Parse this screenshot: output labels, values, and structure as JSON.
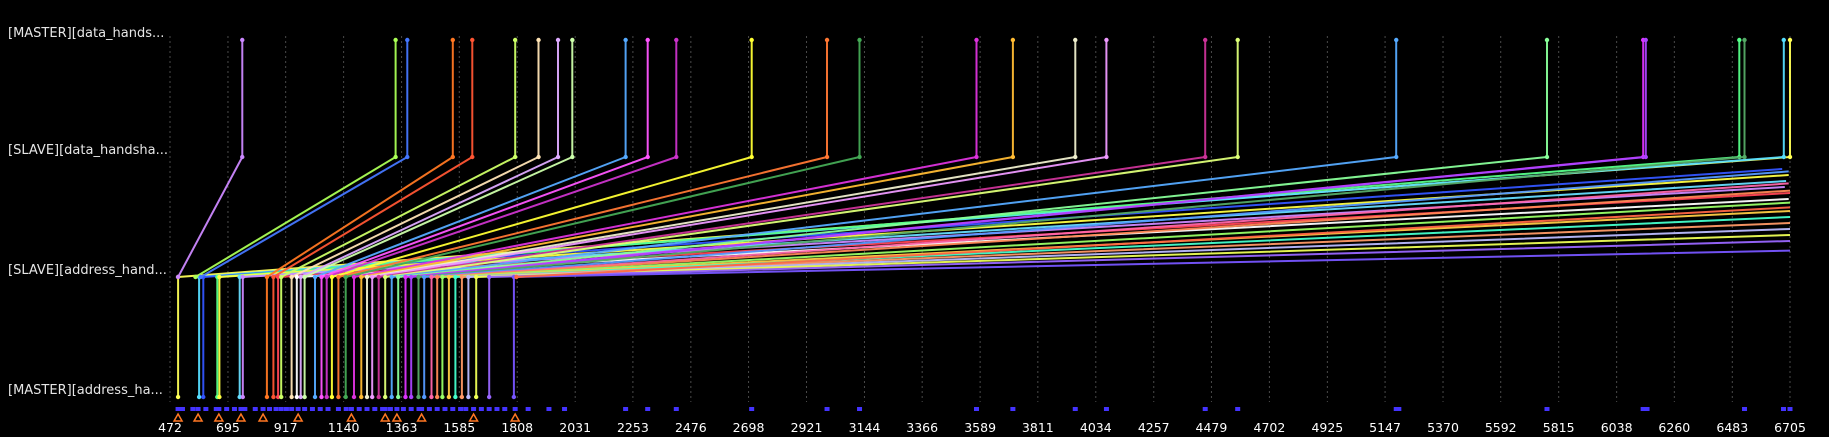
{
  "chart_data": {
    "type": "line",
    "title": "",
    "xlabel": "",
    "ylabel": "",
    "grid": true,
    "xlim": [
      472,
      6705
    ],
    "x_ticks": [
      472,
      695,
      917,
      1140,
      1363,
      1585,
      1808,
      2031,
      2253,
      2476,
      2698,
      2921,
      3144,
      3366,
      3589,
      3811,
      4034,
      4257,
      4479,
      4702,
      4925,
      5147,
      5370,
      5592,
      5815,
      6038,
      6260,
      6483,
      6705
    ],
    "lanes": [
      "[MASTER][data_hands...",
      "[SLAVE][data_handsha...",
      "[SLAVE][address_hand...",
      "[MASTER][address_ha..."
    ],
    "series": [
      {
        "color": "#ffff55",
        "path": [
          [
            503,
            3
          ],
          [
            503,
            2
          ],
          [
            6705,
            1
          ],
          [
            6705,
            0
          ]
        ]
      },
      {
        "color": "#55ddff",
        "path": [
          [
            584,
            3
          ],
          [
            584,
            2
          ],
          [
            6681,
            1
          ],
          [
            6681,
            0
          ]
        ]
      },
      {
        "color": "#3355ff",
        "path": [
          [
            600,
            3
          ],
          [
            600,
            2
          ],
          [
            6675,
            1.1
          ]
        ]
      },
      {
        "color": "#cc88ff",
        "path": [
          [
            503,
            2
          ],
          [
            750,
            1
          ],
          [
            750,
            0
          ]
        ]
      },
      {
        "color": "#55ff88",
        "path": [
          [
            654,
            3
          ],
          [
            654,
            2
          ],
          [
            6510,
            1
          ],
          [
            6510,
            0
          ]
        ]
      },
      {
        "color": "#ffff44",
        "path": [
          [
            662,
            3
          ],
          [
            662,
            2
          ],
          [
            6700,
            1.15
          ]
        ]
      },
      {
        "color": "#66ddff",
        "path": [
          [
            740,
            3
          ],
          [
            740,
            2
          ],
          [
            6690,
            1.2
          ]
        ]
      },
      {
        "color": "#cc88ff",
        "path": [
          [
            752,
            3
          ],
          [
            752,
            2
          ],
          [
            6685,
            1.25
          ]
        ]
      },
      {
        "color": "#aaff55",
        "path": [
          [
            570,
            2
          ],
          [
            1340,
            1
          ],
          [
            1340,
            0
          ]
        ]
      },
      {
        "color": "#4477ff",
        "path": [
          [
            590,
            2
          ],
          [
            1385,
            1
          ],
          [
            1385,
            0
          ]
        ]
      },
      {
        "color": "#ff7722",
        "path": [
          [
            845,
            3
          ],
          [
            845,
            2
          ],
          [
            1560,
            1
          ],
          [
            1560,
            0
          ]
        ]
      },
      {
        "color": "#ff5533",
        "path": [
          [
            870,
            3
          ],
          [
            870,
            2
          ],
          [
            1635,
            1
          ],
          [
            1635,
            0
          ]
        ]
      },
      {
        "color": "#ff4455",
        "path": [
          [
            888,
            3
          ],
          [
            888,
            2
          ],
          [
            6705,
            1.3
          ]
        ]
      },
      {
        "color": "#ccff66",
        "path": [
          [
            900,
            3
          ],
          [
            900,
            2
          ],
          [
            1800,
            1
          ],
          [
            1800,
            0
          ]
        ]
      },
      {
        "color": "#ffe4b5",
        "path": [
          [
            940,
            3
          ],
          [
            940,
            2
          ],
          [
            1890,
            1
          ],
          [
            1890,
            0
          ]
        ]
      },
      {
        "color": "#ffffff",
        "path": [
          [
            960,
            3
          ],
          [
            960,
            2
          ],
          [
            6700,
            1.35
          ]
        ]
      },
      {
        "color": "#ddaaff",
        "path": [
          [
            975,
            3
          ],
          [
            975,
            2
          ],
          [
            1965,
            1
          ],
          [
            1965,
            0
          ]
        ]
      },
      {
        "color": "#ccffaa",
        "path": [
          [
            990,
            3
          ],
          [
            990,
            2
          ],
          [
            2020,
            1
          ],
          [
            2020,
            0
          ]
        ]
      },
      {
        "color": "#55aaff",
        "path": [
          [
            1030,
            3
          ],
          [
            1030,
            2
          ],
          [
            2225,
            1
          ],
          [
            2225,
            0
          ]
        ]
      },
      {
        "color": "#ff55ff",
        "path": [
          [
            1055,
            3
          ],
          [
            1055,
            2
          ],
          [
            2310,
            1
          ],
          [
            2310,
            0
          ]
        ]
      },
      {
        "color": "#cc33cc",
        "path": [
          [
            1075,
            3
          ],
          [
            1075,
            2
          ],
          [
            2420,
            1
          ],
          [
            2420,
            0
          ]
        ]
      },
      {
        "color": "#ffff33",
        "path": [
          [
            1095,
            3
          ],
          [
            1095,
            2
          ],
          [
            2710,
            1
          ],
          [
            2710,
            0
          ]
        ]
      },
      {
        "color": "#ff7733",
        "path": [
          [
            1120,
            3
          ],
          [
            1120,
            2
          ],
          [
            3000,
            1
          ],
          [
            3000,
            0
          ]
        ]
      },
      {
        "color": "#44aa55",
        "path": [
          [
            1148,
            3
          ],
          [
            1148,
            2
          ],
          [
            3125,
            1
          ],
          [
            3125,
            0
          ]
        ]
      },
      {
        "color": "#dd33dd",
        "path": [
          [
            1180,
            3
          ],
          [
            1180,
            2
          ],
          [
            3575,
            1
          ],
          [
            3575,
            0
          ]
        ]
      },
      {
        "color": "#ffbb33",
        "path": [
          [
            1208,
            3
          ],
          [
            1208,
            2
          ],
          [
            3715,
            1
          ],
          [
            3715,
            0
          ]
        ]
      },
      {
        "color": "#eeeecc",
        "path": [
          [
            1230,
            3
          ],
          [
            1230,
            2
          ],
          [
            3955,
            1
          ],
          [
            3955,
            0
          ]
        ]
      },
      {
        "color": "#ee99ff",
        "path": [
          [
            1250,
            3
          ],
          [
            1250,
            2
          ],
          [
            4075,
            1
          ],
          [
            4075,
            0
          ]
        ]
      },
      {
        "color": "#cc3399",
        "path": [
          [
            1275,
            3
          ],
          [
            1275,
            2
          ],
          [
            4455,
            1
          ],
          [
            4455,
            0
          ]
        ]
      },
      {
        "color": "#ddff77",
        "path": [
          [
            1300,
            3
          ],
          [
            1300,
            2
          ],
          [
            4580,
            1
          ],
          [
            4580,
            0
          ]
        ]
      },
      {
        "color": "#55aaff",
        "path": [
          [
            1325,
            3
          ],
          [
            1325,
            2
          ],
          [
            5190,
            1
          ],
          [
            5190,
            0
          ]
        ]
      },
      {
        "color": "#88ff99",
        "path": [
          [
            1350,
            3
          ],
          [
            1350,
            2
          ],
          [
            5770,
            1
          ],
          [
            5770,
            0
          ]
        ]
      },
      {
        "color": "#dd33ff",
        "path": [
          [
            1378,
            3
          ],
          [
            1378,
            2
          ],
          [
            6140,
            1
          ],
          [
            6140,
            0
          ]
        ]
      },
      {
        "color": "#aa44ff",
        "path": [
          [
            1400,
            3
          ],
          [
            1400,
            2
          ],
          [
            6150,
            1
          ],
          [
            6150,
            0
          ]
        ]
      },
      {
        "color": "#55aa66",
        "path": [
          [
            1428,
            3
          ],
          [
            1428,
            2
          ],
          [
            6530,
            1
          ],
          [
            6530,
            0
          ]
        ]
      },
      {
        "color": "#5599ff",
        "path": [
          [
            1450,
            3
          ],
          [
            1450,
            2
          ],
          [
            6700,
            1.12
          ]
        ]
      },
      {
        "color": "#ff66aa",
        "path": [
          [
            1478,
            3
          ],
          [
            1478,
            2
          ],
          [
            6700,
            1.22
          ]
        ]
      },
      {
        "color": "#ff8855",
        "path": [
          [
            1500,
            3
          ],
          [
            1500,
            2
          ],
          [
            6705,
            1.28
          ]
        ]
      },
      {
        "color": "#99ff66",
        "path": [
          [
            1520,
            3
          ],
          [
            1520,
            2
          ],
          [
            6705,
            1.38
          ]
        ]
      },
      {
        "color": "#ffcc44",
        "path": [
          [
            1545,
            3
          ],
          [
            1545,
            2
          ],
          [
            6705,
            1.45
          ]
        ]
      },
      {
        "color": "#44ffcc",
        "path": [
          [
            1570,
            3
          ],
          [
            1570,
            2
          ],
          [
            6705,
            1.5
          ]
        ]
      },
      {
        "color": "#ff9966",
        "path": [
          [
            1595,
            3
          ],
          [
            1595,
            2
          ],
          [
            6705,
            1.55
          ]
        ]
      },
      {
        "color": "#bbbbff",
        "path": [
          [
            1620,
            3
          ],
          [
            1620,
            2
          ],
          [
            6705,
            1.6
          ]
        ]
      },
      {
        "color": "#eeff55",
        "path": [
          [
            1650,
            3
          ],
          [
            1650,
            2
          ],
          [
            6705,
            1.65
          ]
        ]
      },
      {
        "color": "#9966ff",
        "path": [
          [
            1700,
            3
          ],
          [
            1700,
            2
          ],
          [
            6705,
            1.7
          ]
        ]
      },
      {
        "color": "#7755ff",
        "path": [
          [
            1795,
            3
          ],
          [
            1795,
            2
          ],
          [
            6705,
            1.78
          ]
        ]
      },
      {
        "color": "#ff6644",
        "path": [
          [
            1805,
            2
          ],
          [
            6705,
            1.42
          ]
        ]
      }
    ],
    "bottom_markers": [
      {
        "x": 503,
        "color": "#ff7722",
        "shape": "triangle"
      },
      {
        "x": 580,
        "color": "#ff7722",
        "shape": "triangle"
      },
      {
        "x": 660,
        "color": "#ff7722",
        "shape": "triangle"
      },
      {
        "x": 745,
        "color": "#ff7722",
        "shape": "triangle"
      },
      {
        "x": 830,
        "color": "#ff7722",
        "shape": "triangle"
      },
      {
        "x": 965,
        "color": "#ff7722",
        "shape": "triangle"
      },
      {
        "x": 1170,
        "color": "#ff7722",
        "shape": "triangle"
      },
      {
        "x": 1300,
        "color": "#ff7722",
        "shape": "triangle"
      },
      {
        "x": 1345,
        "color": "#ff7722",
        "shape": "triangle"
      },
      {
        "x": 1440,
        "color": "#ff7722",
        "shape": "triangle"
      },
      {
        "x": 1640,
        "color": "#ff7722",
        "shape": "triangle"
      },
      {
        "x": 1800,
        "color": "#ff7722",
        "shape": "triangle"
      }
    ],
    "event_ticks": [
      503,
      520,
      560,
      580,
      610,
      650,
      660,
      690,
      720,
      745,
      760,
      800,
      830,
      855,
      880,
      900,
      920,
      940,
      965,
      990,
      1020,
      1050,
      1080,
      1120,
      1150,
      1170,
      1200,
      1230,
      1260,
      1290,
      1300,
      1320,
      1345,
      1370,
      1400,
      1430,
      1440,
      1470,
      1500,
      1530,
      1560,
      1590,
      1610,
      1640,
      1670,
      1700,
      1730,
      1760,
      1800,
      1850,
      1930,
      1990,
      2225,
      2310,
      2420,
      2710,
      3000,
      3125,
      3575,
      3715,
      3955,
      4075,
      4455,
      4580,
      5190,
      5195,
      5200,
      5770,
      6140,
      6145,
      6150,
      6155,
      6530,
      6680,
      6705
    ]
  }
}
